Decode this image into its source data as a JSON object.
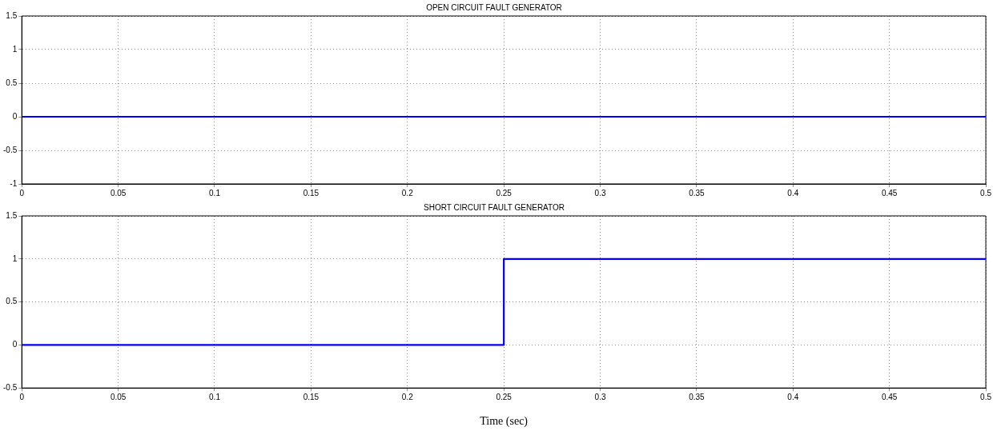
{
  "chart_data": [
    {
      "type": "step",
      "title": "OPEN CIRCUIT FAULT GENERATOR",
      "x": [
        0,
        0.5
      ],
      "series": [
        {
          "color": "#0000ff",
          "values": [
            0,
            0
          ]
        }
      ],
      "xlim": [
        0,
        0.5
      ],
      "xticks": [
        0,
        0.05,
        0.1,
        0.15,
        0.2,
        0.25,
        0.3,
        0.35,
        0.4,
        0.45,
        0.5
      ],
      "ylim": [
        -1,
        1.5
      ],
      "yticks": [
        -1,
        -0.5,
        0,
        0.5,
        1,
        1.5
      ],
      "grid": true,
      "legend": false,
      "marker": "none",
      "line_style": "solid"
    },
    {
      "type": "step",
      "title": "SHORT CIRCUIT FAULT GENERATOR",
      "xlabel": "Time (sec)",
      "x": [
        0,
        0.25,
        0.5
      ],
      "series": [
        {
          "color": "#0000ff",
          "values": [
            0,
            1,
            1
          ]
        }
      ],
      "xlim": [
        0,
        0.5
      ],
      "xticks": [
        0,
        0.05,
        0.1,
        0.15,
        0.2,
        0.25,
        0.3,
        0.35,
        0.4,
        0.45,
        0.5
      ],
      "ylim": [
        -0.5,
        1.5
      ],
      "yticks": [
        -0.5,
        0,
        0.5,
        1,
        1.5
      ],
      "grid": true,
      "legend": false,
      "marker": "none",
      "line_style": "solid"
    }
  ]
}
